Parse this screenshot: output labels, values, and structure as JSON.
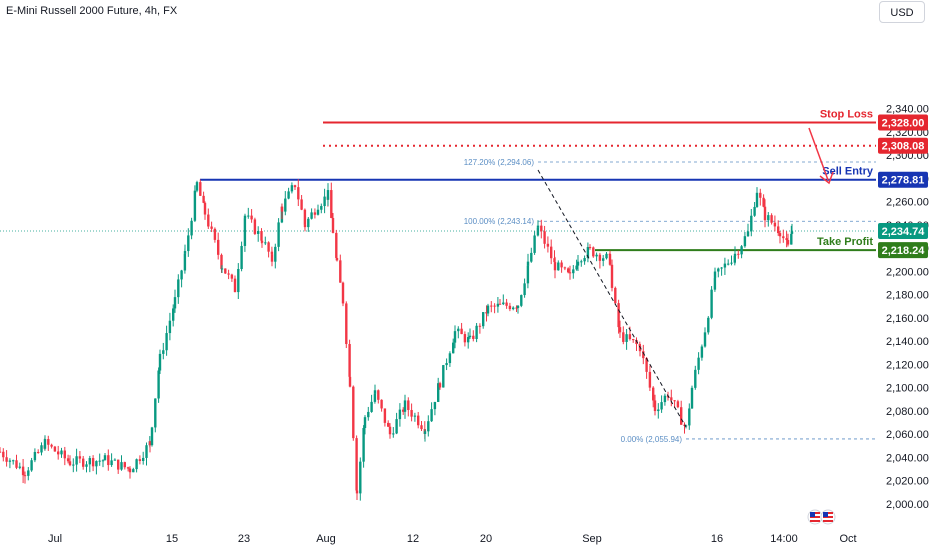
{
  "header": {
    "title": "E-Mini Russell 2000 Future, 4h, FX",
    "currency_button": "USD"
  },
  "chart_data": {
    "type": "candlestick",
    "title": "E-Mini Russell 2000 Future, 4h, FX",
    "y_ticks": [
      "2,000.00",
      "2,020.00",
      "2,040.00",
      "2,060.00",
      "2,080.00",
      "2,100.00",
      "2,120.00",
      "2,140.00",
      "2,160.00",
      "2,180.00",
      "2,200.00",
      "2,220.00",
      "2,240.00",
      "2,260.00",
      "2,280.00",
      "2,300.00",
      "2,320.00",
      "2,340.00"
    ],
    "y_tick_values": [
      2000,
      2020,
      2040,
      2060,
      2080,
      2100,
      2120,
      2140,
      2160,
      2180,
      2200,
      2220,
      2240,
      2260,
      2280,
      2300,
      2320,
      2340
    ],
    "ylim": [
      1985,
      2350
    ],
    "x_ticks": [
      "Jul",
      "15",
      "23",
      "Aug",
      "12",
      "20",
      "Sep",
      "16",
      "14:00",
      "Oct"
    ],
    "levels": [
      {
        "name": "Stop Loss",
        "value": 2328.0,
        "tag": "2,328.00",
        "color": "#e5262f",
        "style": "solid"
      },
      {
        "name": "",
        "value": 2308.08,
        "tag": "2,308.08",
        "color": "#e5262f",
        "style": "dotted"
      },
      {
        "name": "Sell Entry",
        "value": 2278.81,
        "tag": "2,278.81",
        "color": "#1735b3",
        "style": "solid"
      },
      {
        "name": "Take Profit",
        "value": 2218.24,
        "tag": "2,218.24",
        "color": "#2f7d1b",
        "style": "solid"
      }
    ],
    "last_price": {
      "value": 2234.74,
      "tag": "2,234.74",
      "color": "#089981"
    },
    "fib_levels": [
      {
        "label": "127.20% (2,294.06)",
        "value": 2294.06
      },
      {
        "label": "100.00% (2,243.14)",
        "value": 2243.14
      },
      {
        "label": "0.00% (2,055.94)",
        "value": 2055.94
      }
    ],
    "up_color": "#089981",
    "down_color": "#f23645",
    "keypoints": [
      [
        0,
        2045
      ],
      [
        25,
        2028
      ],
      [
        45,
        2052
      ],
      [
        70,
        2036
      ],
      [
        105,
        2038
      ],
      [
        130,
        2030
      ],
      [
        150,
        2052
      ],
      [
        152,
        2070
      ],
      [
        160,
        2125
      ],
      [
        175,
        2175
      ],
      [
        185,
        2215
      ],
      [
        197,
        2275
      ],
      [
        205,
        2250
      ],
      [
        222,
        2205
      ],
      [
        235,
        2185
      ],
      [
        245,
        2248
      ],
      [
        262,
        2228
      ],
      [
        272,
        2210
      ],
      [
        282,
        2255
      ],
      [
        295,
        2275
      ],
      [
        305,
        2240
      ],
      [
        318,
        2258
      ],
      [
        328,
        2265
      ],
      [
        333,
        2235
      ],
      [
        337,
        2205
      ],
      [
        343,
        2175
      ],
      [
        350,
        2105
      ],
      [
        357,
        2010
      ],
      [
        365,
        2075
      ],
      [
        375,
        2095
      ],
      [
        390,
        2060
      ],
      [
        405,
        2085
      ],
      [
        425,
        2065
      ],
      [
        440,
        2105
      ],
      [
        455,
        2148
      ],
      [
        470,
        2140
      ],
      [
        488,
        2168
      ],
      [
        500,
        2170
      ],
      [
        518,
        2172
      ],
      [
        528,
        2205
      ],
      [
        538,
        2238
      ],
      [
        555,
        2205
      ],
      [
        570,
        2195
      ],
      [
        578,
        2212
      ],
      [
        590,
        2218
      ],
      [
        610,
        2210
      ],
      [
        612,
        2185
      ],
      [
        620,
        2145
      ],
      [
        640,
        2135
      ],
      [
        655,
        2082
      ],
      [
        668,
        2095
      ],
      [
        686,
        2065
      ],
      [
        692,
        2100
      ],
      [
        705,
        2150
      ],
      [
        715,
        2195
      ],
      [
        735,
        2215
      ],
      [
        748,
        2233
      ],
      [
        757,
        2270
      ],
      [
        765,
        2248
      ],
      [
        780,
        2235
      ],
      [
        788,
        2220
      ],
      [
        792,
        2234.74
      ]
    ]
  }
}
